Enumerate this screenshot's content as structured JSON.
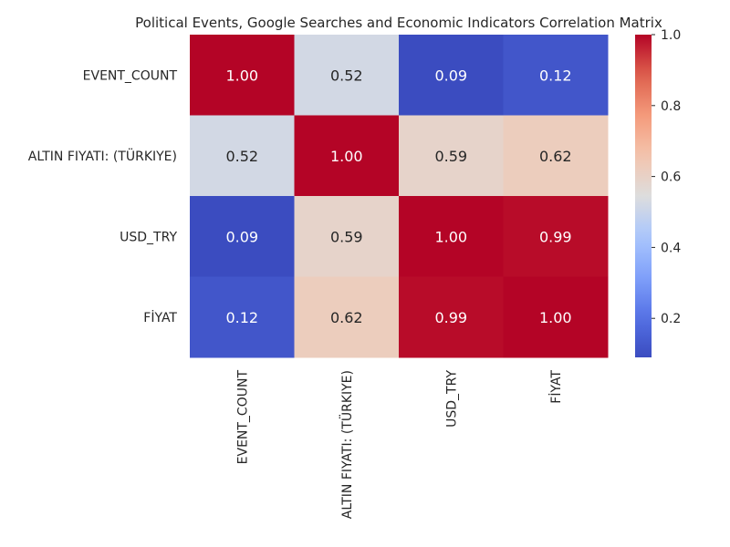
{
  "chart_data": {
    "type": "heatmap",
    "title": "Political Events, Google Searches and Economic Indicators Correlation Matrix",
    "xlabel": "",
    "ylabel": "",
    "row_labels": [
      "EVENT_COUNT",
      "ALTIN FIYATI: (TÜRKIYE)",
      "USD_TRY",
      "FİYAT"
    ],
    "col_labels": [
      "EVENT_COUNT",
      "ALTIN FIYATI: (TÜRKIYE)",
      "USD_TRY",
      "FİYAT"
    ],
    "values": [
      [
        1.0,
        0.52,
        0.09,
        0.12
      ],
      [
        0.52,
        1.0,
        0.59,
        0.62
      ],
      [
        0.09,
        0.59,
        1.0,
        0.99
      ],
      [
        0.12,
        0.62,
        0.99,
        1.0
      ]
    ],
    "value_labels": [
      [
        "1.00",
        "0.52",
        "0.09",
        "0.12"
      ],
      [
        "0.52",
        "1.00",
        "0.59",
        "0.62"
      ],
      [
        "0.09",
        "0.59",
        "1.00",
        "0.99"
      ],
      [
        "0.12",
        "0.62",
        "0.99",
        "1.00"
      ]
    ],
    "colormap": "coolwarm",
    "colorbar": {
      "range": [
        0.09,
        1.0
      ],
      "ticks": [
        0.2,
        0.4,
        0.6,
        0.8,
        1.0
      ],
      "tick_labels": [
        "0.2",
        "0.4",
        "0.6",
        "0.8",
        "1.0"
      ]
    },
    "annotations": true,
    "grid": false
  }
}
